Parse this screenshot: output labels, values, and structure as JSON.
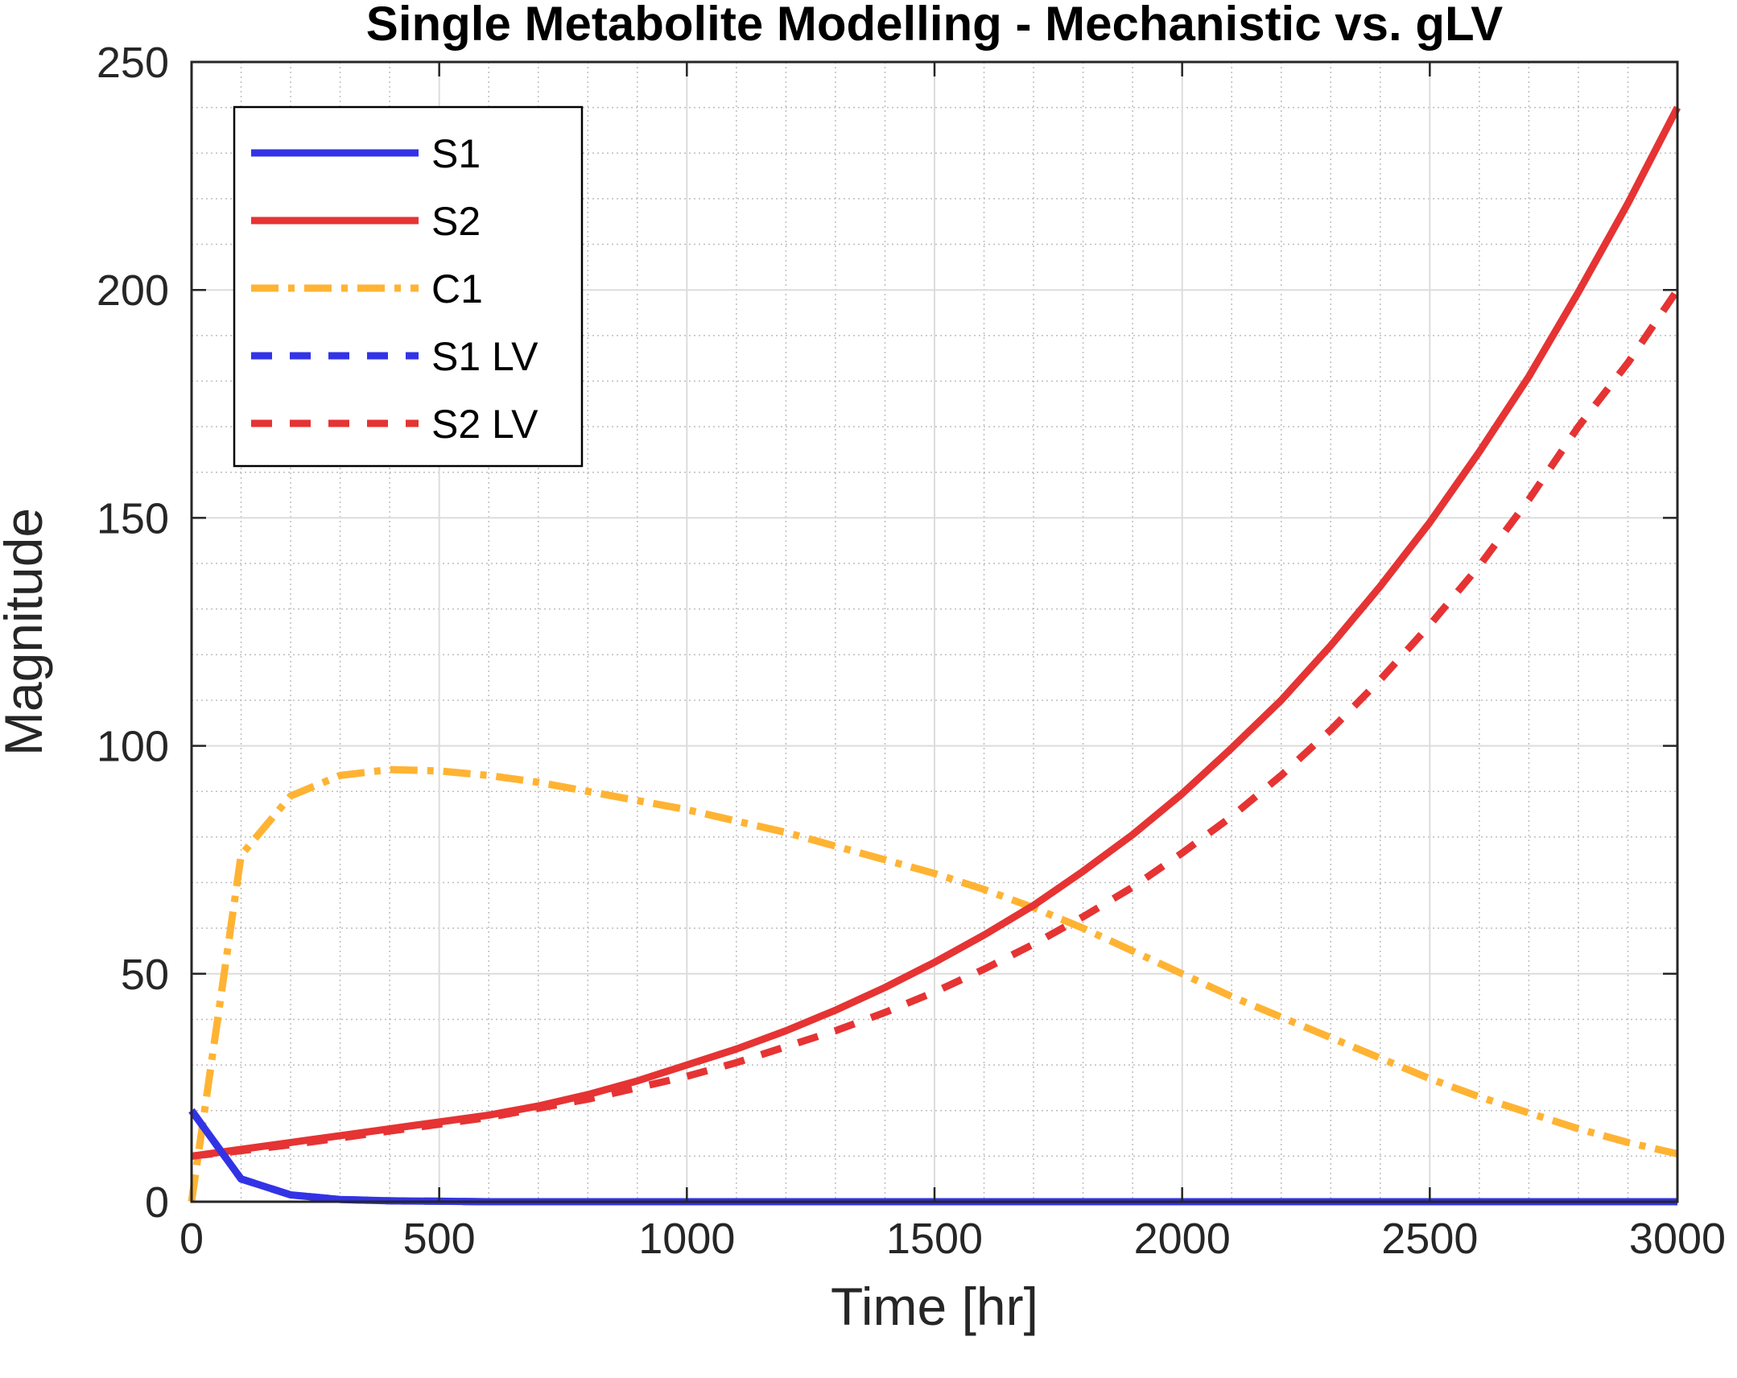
{
  "chart_data": {
    "type": "line",
    "title": "Single Metabolite Modelling - Mechanistic vs. gLV",
    "xlabel": "Time [hr]",
    "ylabel": "Magnitude",
    "xlim": [
      0,
      3000
    ],
    "ylim": [
      0,
      250
    ],
    "x_ticks": [
      "0",
      "500",
      "1000",
      "1500",
      "2000",
      "2500",
      "3000"
    ],
    "y_ticks": [
      "0",
      "50",
      "100",
      "150",
      "200",
      "250"
    ],
    "grid": "major and minor",
    "legend_position": "top-left",
    "x": [
      0,
      100,
      200,
      300,
      400,
      500,
      600,
      700,
      800,
      900,
      1000,
      1100,
      1200,
      1300,
      1400,
      1500,
      1600,
      1700,
      1800,
      1900,
      2000,
      2100,
      2200,
      2300,
      2400,
      2500,
      2600,
      2700,
      2800,
      2900,
      3000
    ],
    "series": [
      {
        "name": "S1",
        "color": "#3333e6",
        "line_style": "solid",
        "values": [
          20,
          5,
          1.5,
          0.5,
          0.2,
          0.1,
          0,
          0,
          0,
          0,
          0,
          0,
          0,
          0,
          0,
          0,
          0,
          0,
          0,
          0,
          0,
          0,
          0,
          0,
          0,
          0,
          0,
          0,
          0,
          0,
          0
        ]
      },
      {
        "name": "S2",
        "color": "#e63333",
        "line_style": "solid",
        "values": [
          10,
          11.5,
          13,
          14.5,
          16,
          17.5,
          19,
          21,
          23.5,
          26.5,
          30,
          33.5,
          37.5,
          42,
          47,
          52.5,
          58.5,
          65,
          72.5,
          80.5,
          89.5,
          99.5,
          110,
          122,
          135,
          149,
          164.5,
          181,
          199.5,
          219,
          240
        ]
      },
      {
        "name": "C1",
        "color": "#ffb333",
        "line_style": "dashdot",
        "values": [
          0,
          76,
          89,
          93.5,
          94.8,
          94.5,
          93.5,
          92,
          90,
          88,
          86,
          83.5,
          81,
          78,
          75,
          72,
          68.5,
          64.5,
          60,
          55,
          50,
          45,
          40.5,
          36,
          31.5,
          27,
          23,
          19.5,
          16,
          13,
          10.5
        ]
      },
      {
        "name": "S1 LV",
        "color": "#3333e6",
        "line_style": "dashed",
        "values": [
          20,
          5,
          1.5,
          0.5,
          0.2,
          0.1,
          0,
          0,
          0,
          0,
          0,
          0,
          0,
          0,
          0,
          0,
          0,
          0,
          0,
          0,
          0,
          0,
          0,
          0,
          0,
          0,
          0,
          0,
          0,
          0,
          0
        ]
      },
      {
        "name": "S2 LV",
        "color": "#e63333",
        "line_style": "dashed",
        "values": [
          10,
          11.2,
          12.5,
          14,
          15.5,
          17,
          18.5,
          20.5,
          22.5,
          25,
          27.5,
          30.5,
          34,
          37.5,
          41.5,
          46,
          51,
          56.5,
          62.5,
          69,
          76.5,
          84.5,
          93.5,
          103.5,
          114.5,
          126.5,
          139.5,
          154,
          170,
          184,
          200
        ]
      }
    ]
  }
}
